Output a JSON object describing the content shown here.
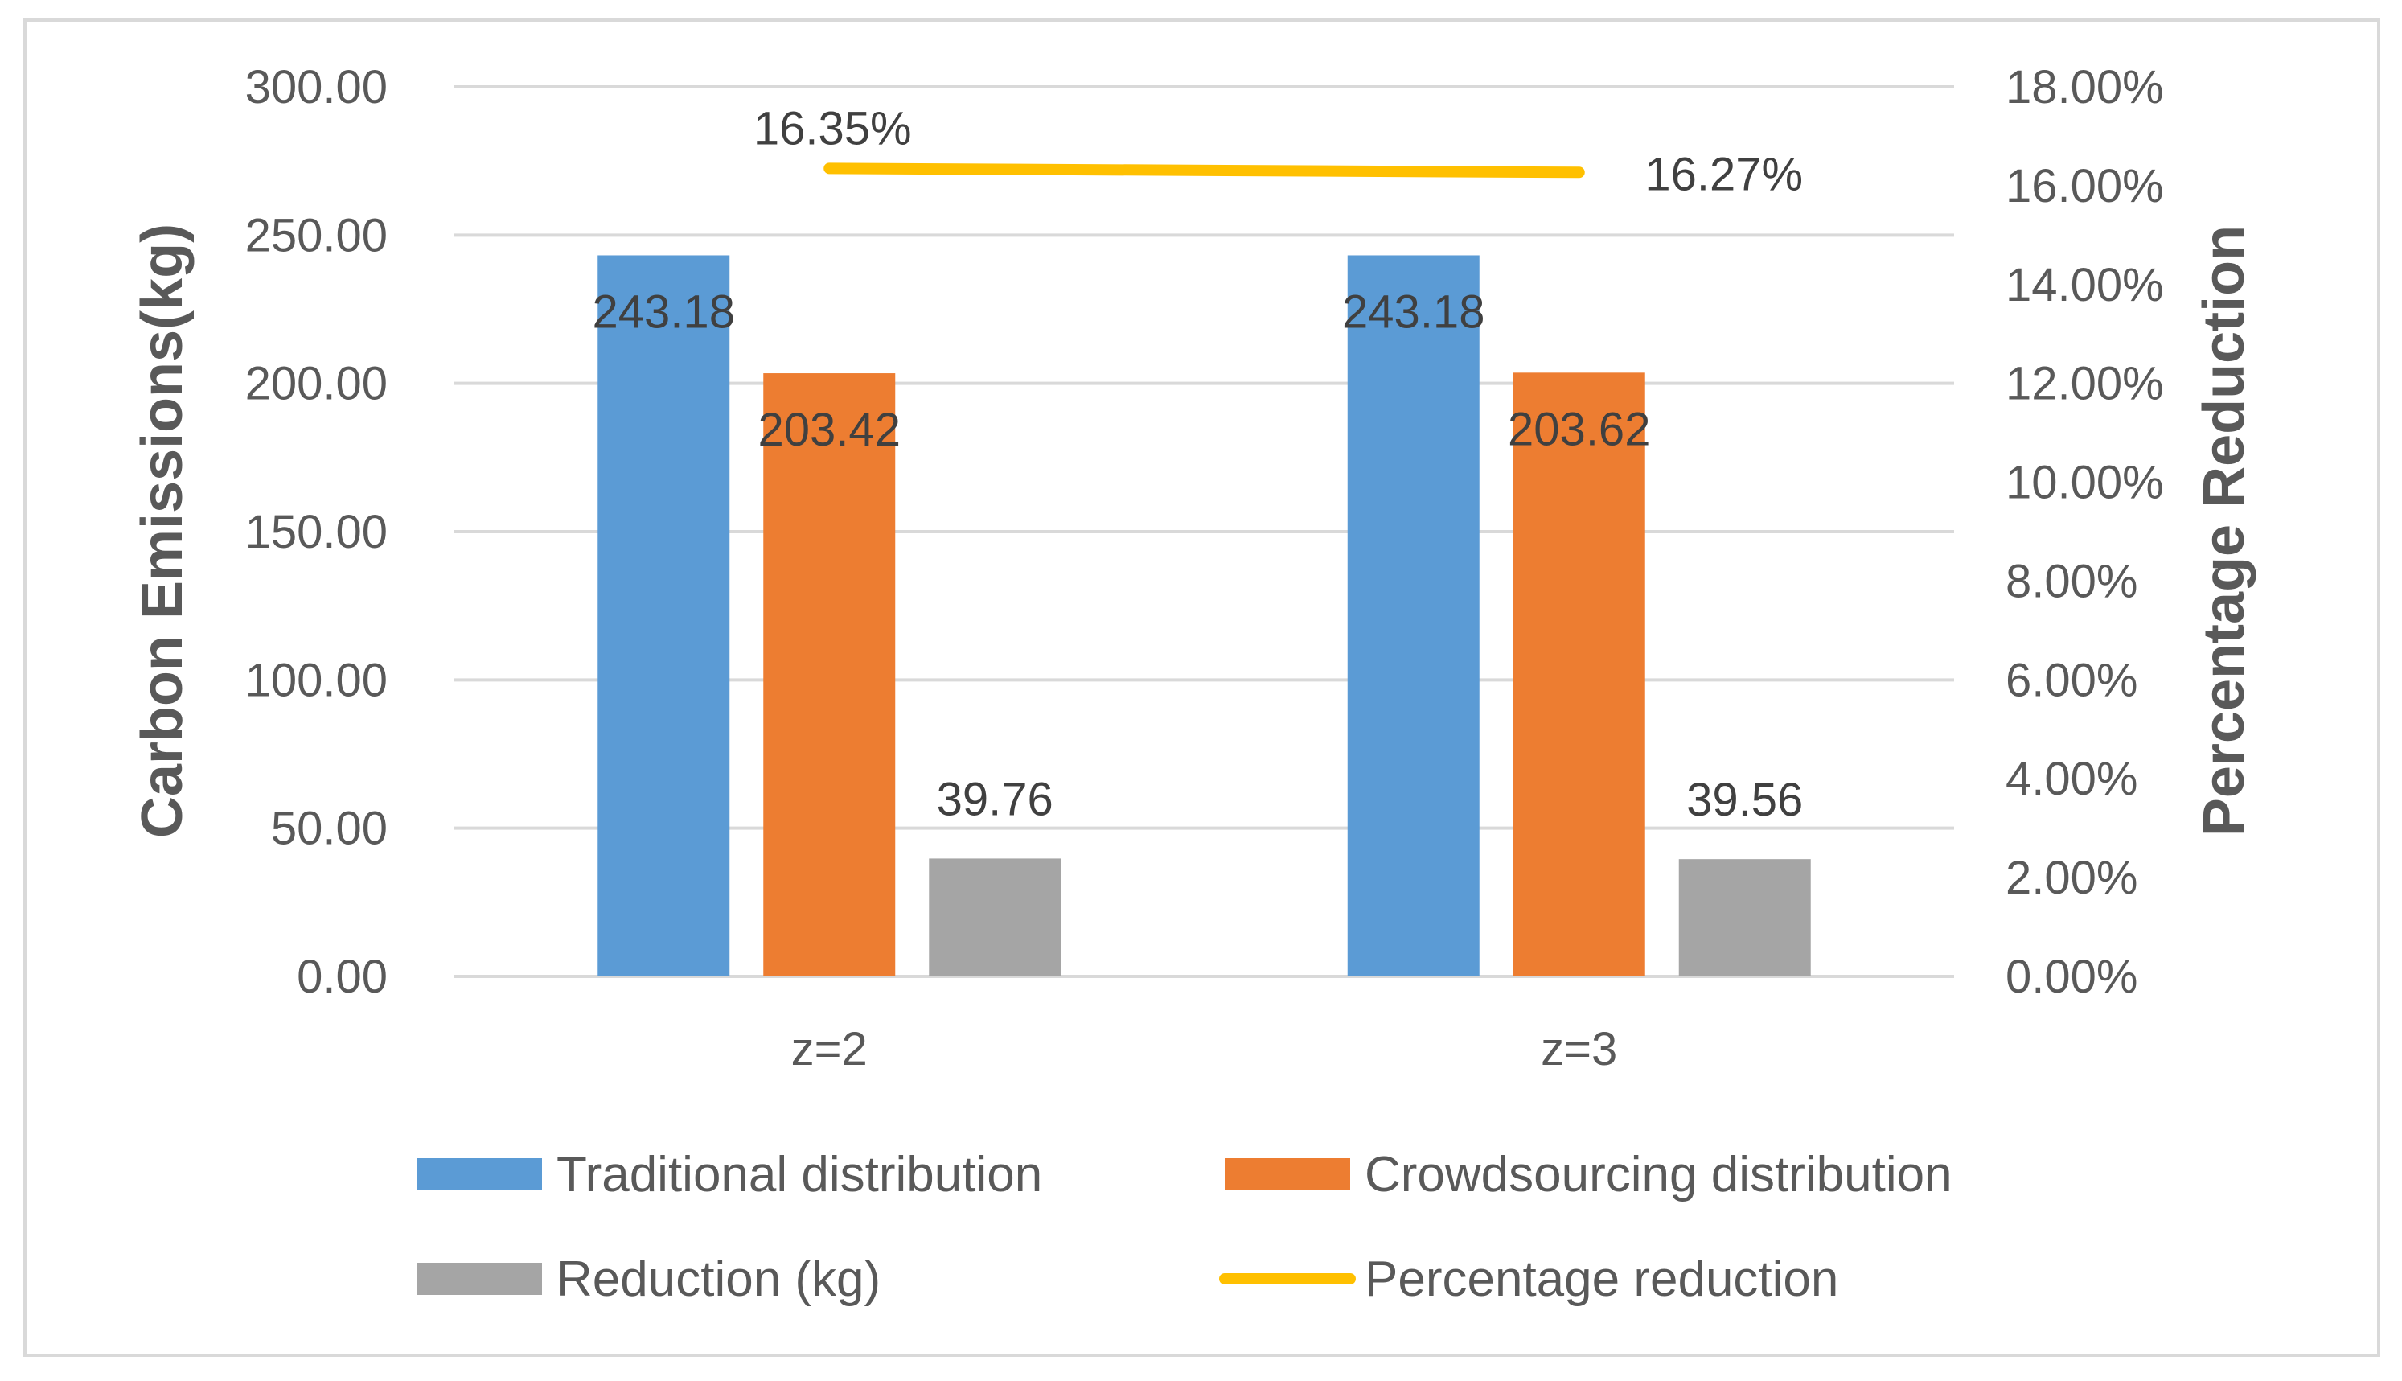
{
  "chart_data": {
    "type": "bar",
    "categories": [
      "z=2",
      "z=3"
    ],
    "series": [
      {
        "name": "Traditional distribution",
        "kind": "bar",
        "axis": "left",
        "color": "#5b9bd5",
        "values": [
          243.18,
          243.18
        ],
        "labels": [
          "243.18",
          "243.18"
        ]
      },
      {
        "name": "Crowdsourcing distribution",
        "kind": "bar",
        "axis": "left",
        "color": "#ed7d31",
        "values": [
          203.42,
          203.62
        ],
        "labels": [
          "203.42",
          "203.62"
        ]
      },
      {
        "name": "Reduction (kg)",
        "kind": "bar",
        "axis": "left",
        "color": "#a5a5a5",
        "values": [
          39.76,
          39.56
        ],
        "labels": [
          "39.76",
          "39.56"
        ]
      },
      {
        "name": "Percentage reduction",
        "kind": "line",
        "axis": "right",
        "color": "#ffc000",
        "values": [
          16.35,
          16.27
        ],
        "labels": [
          "16.35%",
          "16.27%"
        ]
      }
    ],
    "ylabel": "Carbon Emissions(kg)",
    "y2label": "Percentage Reduction",
    "ylim": [
      0,
      300
    ],
    "y2lim": [
      0,
      18
    ],
    "y_ticks": [
      "0.00",
      "50.00",
      "100.00",
      "150.00",
      "200.00",
      "250.00",
      "300.00"
    ],
    "y2_ticks": [
      "0.00%",
      "2.00%",
      "4.00%",
      "6.00%",
      "8.00%",
      "10.00%",
      "12.00%",
      "14.00%",
      "16.00%",
      "18.00%"
    ],
    "grid": true,
    "legend": "bottom"
  }
}
